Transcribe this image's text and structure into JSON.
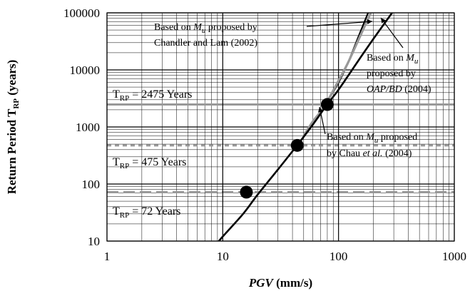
{
  "chart_data": {
    "type": "line",
    "xscale": "log",
    "yscale": "log",
    "xlim": [
      1,
      1000
    ],
    "ylim": [
      10,
      100000
    ],
    "grid": true,
    "xlabel": "PGV (mm/s)",
    "ylabel": "Return Period TRP (years)",
    "x_ticks": [
      "1",
      "10",
      "100",
      "1000"
    ],
    "y_ticks": [
      "10",
      "100",
      "1000",
      "10000",
      "100000"
    ],
    "series": [
      {
        "name": "Based on Mu proposed by Chandler and Lam (2002)",
        "color": "#000000",
        "x": [
          50,
          60,
          70,
          80,
          100,
          120,
          150,
          180
        ],
        "y": [
          700,
          1250,
          1850,
          2800,
          6000,
          13000,
          40000,
          100000
        ]
      },
      {
        "name": "Based on Mu proposed by OAP/BD (2004)",
        "color": "#999999",
        "x": [
          50,
          60,
          70,
          80,
          100,
          120,
          150,
          190
        ],
        "y": [
          700,
          1250,
          1850,
          2800,
          6500,
          13000,
          35000,
          100000
        ]
      },
      {
        "name": "Based on Mu proposed by Chau et al. (2004)",
        "color": "#000000",
        "x": [
          8,
          10,
          15,
          20,
          30,
          44,
          60,
          80,
          100,
          150,
          200,
          300
        ],
        "y": [
          7,
          12,
          30,
          65,
          180,
          480,
          1100,
          2500,
          4500,
          15000,
          35000,
          110000
        ]
      }
    ],
    "markers": [
      {
        "x": 16,
        "y": 72
      },
      {
        "x": 44,
        "y": 475
      },
      {
        "x": 80,
        "y": 2475
      }
    ],
    "reference_lines": [
      {
        "value": 2475,
        "style": "solid",
        "color": "#999999",
        "label_sub": "RP",
        "label_main": "T",
        "label_rest": " = 2475 Years"
      },
      {
        "value": 475,
        "style": "dotted",
        "color": "#999999",
        "label_sub": "RP",
        "label_main": "T",
        "label_rest": " = 475 Years"
      },
      {
        "value": 72,
        "style": "dashed",
        "color": "#999999",
        "label_sub": "RP",
        "label_main": "T",
        "label_rest": " = 72 Years"
      }
    ],
    "annotations": [
      {
        "lines": [
          [
            "Based on ",
            "M",
            "u",
            " proposed by"
          ],
          [
            "Chandler and Lam (2002)"
          ]
        ]
      },
      {
        "lines": [
          [
            "Based on ",
            "M",
            "u"
          ],
          [
            "proposed by"
          ],
          [
            "OAP/BD",
            " (2004)"
          ]
        ]
      },
      {
        "lines": [
          [
            "Based on ",
            "M",
            "u",
            " proposed"
          ],
          [
            "by Chau ",
            "et al.",
            " (2004)"
          ]
        ]
      }
    ]
  }
}
